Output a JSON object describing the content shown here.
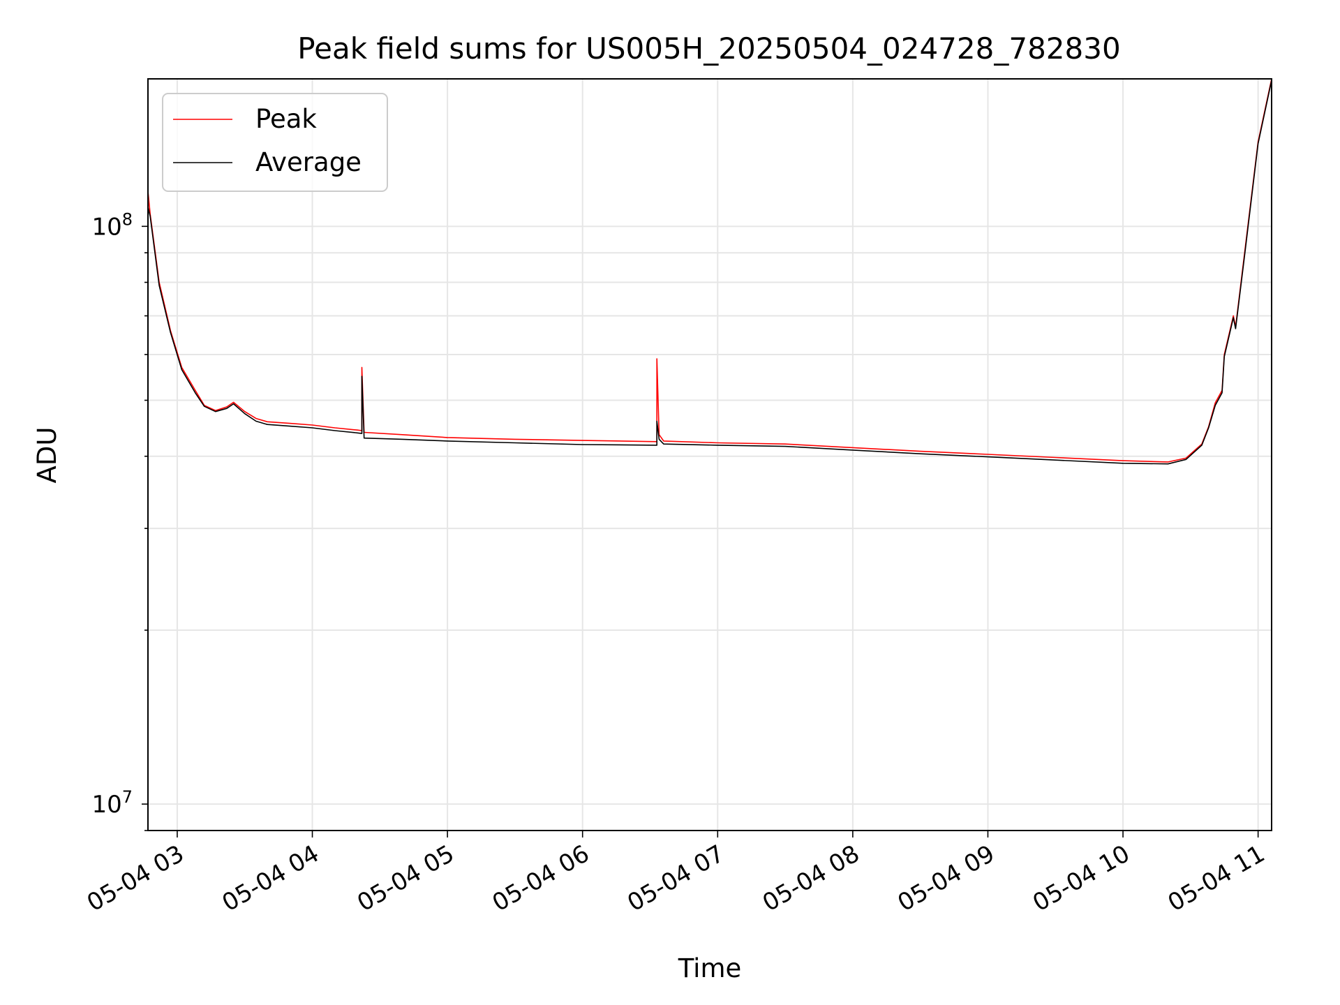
{
  "chart_data": {
    "type": "line",
    "title": "Peak field sums for US005H_20250504_024728_782830",
    "xlabel": "Time",
    "ylabel": "ADU",
    "y_scale": "log",
    "ylim": [
      9000000,
      180000000
    ],
    "xlim": [
      "2025-05-04 02:47",
      "2025-05-04 11:06"
    ],
    "grid": true,
    "legend": "top-left",
    "x_ticks": [
      "05-04 03",
      "05-04 04",
      "05-04 05",
      "05-04 06",
      "05-04 07",
      "05-04 08",
      "05-04 09",
      "05-04 10",
      "05-04 11"
    ],
    "y_ticks": [
      {
        "value": 10000000,
        "base": "10",
        "exp": "7"
      },
      {
        "value": 100000000,
        "base": "10",
        "exp": "8"
      }
    ],
    "series": [
      {
        "name": "Peak",
        "color": "#ff0000",
        "points": [
          [
            "2025-05-04 02:47",
            115000000
          ],
          [
            "2025-05-04 02:48",
            105000000
          ],
          [
            "2025-05-04 02:52",
            80000000
          ],
          [
            "2025-05-04 02:57",
            66000000
          ],
          [
            "2025-05-04 03:02",
            57000000
          ],
          [
            "2025-05-04 03:08",
            52000000
          ],
          [
            "2025-05-04 03:12",
            49000000
          ],
          [
            "2025-05-04 03:17",
            48000000
          ],
          [
            "2025-05-04 03:22",
            48700000
          ],
          [
            "2025-05-04 03:25",
            49600000
          ],
          [
            "2025-05-04 03:30",
            47800000
          ],
          [
            "2025-05-04 03:35",
            46500000
          ],
          [
            "2025-05-04 03:40",
            45900000
          ],
          [
            "2025-05-04 03:50",
            45600000
          ],
          [
            "2025-05-04 04:00",
            45300000
          ],
          [
            "2025-05-04 04:10",
            44800000
          ],
          [
            "2025-05-04 04:20",
            44400000
          ],
          [
            "2025-05-04 04:22",
            44300000
          ],
          [
            "2025-05-04 04:22",
            57000000
          ],
          [
            "2025-05-04 04:23",
            44000000
          ],
          [
            "2025-05-04 04:40",
            43600000
          ],
          [
            "2025-05-04 05:00",
            43100000
          ],
          [
            "2025-05-04 05:30",
            42800000
          ],
          [
            "2025-05-04 06:00",
            42600000
          ],
          [
            "2025-05-04 06:33",
            42400000
          ],
          [
            "2025-05-04 06:33",
            59000000
          ],
          [
            "2025-05-04 06:34",
            43600000
          ],
          [
            "2025-05-04 06:36",
            42500000
          ],
          [
            "2025-05-04 07:00",
            42200000
          ],
          [
            "2025-05-04 07:30",
            42000000
          ],
          [
            "2025-05-04 08:00",
            41400000
          ],
          [
            "2025-05-04 08:30",
            40800000
          ],
          [
            "2025-05-04 09:00",
            40300000
          ],
          [
            "2025-05-04 09:30",
            39800000
          ],
          [
            "2025-05-04 10:00",
            39300000
          ],
          [
            "2025-05-04 10:20",
            39100000
          ],
          [
            "2025-05-04 10:28",
            39700000
          ],
          [
            "2025-05-04 10:35",
            42000000
          ],
          [
            "2025-05-04 10:38",
            45000000
          ],
          [
            "2025-05-04 10:41",
            49500000
          ],
          [
            "2025-05-04 10:44",
            52000000
          ],
          [
            "2025-05-04 10:45",
            60000000
          ],
          [
            "2025-05-04 10:49",
            70000000
          ],
          [
            "2025-05-04 10:50",
            67000000
          ],
          [
            "2025-05-04 10:54",
            90000000
          ],
          [
            "2025-05-04 11:00",
            140000000
          ],
          [
            "2025-05-04 11:06",
            180000000
          ]
        ]
      },
      {
        "name": "Average",
        "color": "#000000",
        "points": [
          [
            "2025-05-04 02:47",
            108000000
          ],
          [
            "2025-05-04 02:48",
            104000000
          ],
          [
            "2025-05-04 02:52",
            79000000
          ],
          [
            "2025-05-04 02:57",
            65500000
          ],
          [
            "2025-05-04 03:02",
            56500000
          ],
          [
            "2025-05-04 03:08",
            51500000
          ],
          [
            "2025-05-04 03:12",
            48800000
          ],
          [
            "2025-05-04 03:17",
            47800000
          ],
          [
            "2025-05-04 03:22",
            48400000
          ],
          [
            "2025-05-04 03:25",
            49300000
          ],
          [
            "2025-05-04 03:30",
            47400000
          ],
          [
            "2025-05-04 03:35",
            46000000
          ],
          [
            "2025-05-04 03:40",
            45400000
          ],
          [
            "2025-05-04 03:50",
            45100000
          ],
          [
            "2025-05-04 04:00",
            44800000
          ],
          [
            "2025-05-04 04:10",
            44300000
          ],
          [
            "2025-05-04 04:20",
            43900000
          ],
          [
            "2025-05-04 04:22",
            43800000
          ],
          [
            "2025-05-04 04:22",
            55000000
          ],
          [
            "2025-05-04 04:23",
            43000000
          ],
          [
            "2025-05-04 04:40",
            42800000
          ],
          [
            "2025-05-04 05:00",
            42500000
          ],
          [
            "2025-05-04 05:30",
            42200000
          ],
          [
            "2025-05-04 06:00",
            41900000
          ],
          [
            "2025-05-04 06:33",
            41800000
          ],
          [
            "2025-05-04 06:33",
            46000000
          ],
          [
            "2025-05-04 06:34",
            42800000
          ],
          [
            "2025-05-04 06:36",
            42000000
          ],
          [
            "2025-05-04 07:00",
            41800000
          ],
          [
            "2025-05-04 07:30",
            41600000
          ],
          [
            "2025-05-04 08:00",
            41000000
          ],
          [
            "2025-05-04 08:30",
            40400000
          ],
          [
            "2025-05-04 09:00",
            39900000
          ],
          [
            "2025-05-04 09:30",
            39400000
          ],
          [
            "2025-05-04 10:00",
            38900000
          ],
          [
            "2025-05-04 10:20",
            38800000
          ],
          [
            "2025-05-04 10:28",
            39500000
          ],
          [
            "2025-05-04 10:35",
            41800000
          ],
          [
            "2025-05-04 10:38",
            44800000
          ],
          [
            "2025-05-04 10:41",
            49000000
          ],
          [
            "2025-05-04 10:44",
            51500000
          ],
          [
            "2025-05-04 10:45",
            59500000
          ],
          [
            "2025-05-04 10:49",
            69500000
          ],
          [
            "2025-05-04 10:50",
            66500000
          ],
          [
            "2025-05-04 10:54",
            89000000
          ],
          [
            "2025-05-04 11:00",
            139000000
          ],
          [
            "2025-05-04 11:06",
            179000000
          ]
        ]
      }
    ]
  }
}
